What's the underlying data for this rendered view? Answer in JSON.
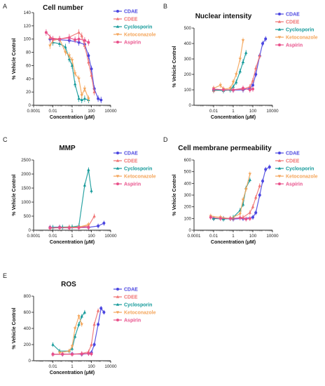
{
  "colors": {
    "CDAE": "#4a45e0",
    "CDEE": "#f07272",
    "Cyclosporin": "#159a9a",
    "Ketoconazole": "#f4a55a",
    "Aspirin": "#e8508a"
  },
  "chart_data": [
    {
      "panel": "A",
      "type": "scatter",
      "title": "Cell number",
      "xlabel": "Concentration (μM)",
      "ylabel": "% Vehicle Control",
      "xscale": "log",
      "xlim": [
        0.0001,
        10000
      ],
      "ylim": [
        0,
        140
      ],
      "xticks": [
        "0.0001",
        "0.01",
        "1",
        "100",
        "10000"
      ],
      "yticks": [
        0,
        20,
        40,
        60,
        80,
        100,
        120,
        140
      ],
      "legend": "top-right",
      "series": [
        {
          "name": "CDAE",
          "points": [
            [
              0.005,
              100
            ],
            [
              0.05,
              99
            ],
            [
              0.5,
              98
            ],
            [
              5,
              95
            ],
            [
              20,
              92
            ],
            [
              50,
              75
            ],
            [
              100,
              55
            ],
            [
              200,
              25
            ],
            [
              500,
              10
            ],
            [
              1000,
              8
            ]
          ]
        },
        {
          "name": "CDEE",
          "points": [
            [
              0.005,
              102
            ],
            [
              0.05,
              100
            ],
            [
              0.5,
              103
            ],
            [
              5,
              110
            ],
            [
              10,
              105
            ],
            [
              20,
              90
            ],
            [
              50,
              65
            ],
            [
              100,
              45
            ],
            [
              200,
              20
            ]
          ]
        },
        {
          "name": "Cyclosporin",
          "points": [
            [
              0.01,
              95
            ],
            [
              0.05,
              93
            ],
            [
              0.2,
              88
            ],
            [
              0.5,
              70
            ],
            [
              1,
              60
            ],
            [
              2,
              32
            ],
            [
              5,
              10
            ],
            [
              10,
              8
            ],
            [
              20,
              10
            ],
            [
              50,
              8
            ]
          ]
        },
        {
          "name": "Ketoconazole",
          "points": [
            [
              0.005,
              90
            ],
            [
              0.01,
              98
            ],
            [
              0.05,
              100
            ],
            [
              0.2,
              80
            ],
            [
              0.5,
              75
            ],
            [
              1,
              68
            ],
            [
              2,
              48
            ],
            [
              5,
              40
            ],
            [
              10,
              15
            ],
            [
              20,
              25
            ],
            [
              50,
              10
            ]
          ]
        },
        {
          "name": "Aspirin",
          "points": [
            [
              0.002,
              110
            ],
            [
              0.01,
              100
            ],
            [
              0.05,
              100
            ],
            [
              0.5,
              102
            ],
            [
              2,
              99
            ],
            [
              5,
              100
            ],
            [
              20,
              98
            ],
            [
              50,
              95
            ]
          ]
        }
      ]
    },
    {
      "panel": "B",
      "type": "scatter",
      "title": "Nuclear intensity",
      "xlabel": "Concentration (μM)",
      "ylabel": "% Vehicle Control",
      "xscale": "log",
      "xlim": [
        0.0001,
        10000
      ],
      "ylim": [
        0,
        500
      ],
      "xticks": [
        "0.01",
        "1",
        "100",
        "10000"
      ],
      "yticks": [
        0,
        100,
        200,
        300,
        400,
        500
      ],
      "legend": "top-right",
      "series": [
        {
          "name": "CDAE",
          "points": [
            [
              0.01,
              100
            ],
            [
              0.1,
              100
            ],
            [
              1,
              98
            ],
            [
              10,
              100
            ],
            [
              50,
              110
            ],
            [
              100,
              130
            ],
            [
              200,
              200
            ],
            [
              500,
              320
            ],
            [
              1000,
              400
            ],
            [
              2000,
              430
            ]
          ]
        },
        {
          "name": "CDEE",
          "points": [
            [
              0.01,
              95
            ],
            [
              0.1,
              100
            ],
            [
              1,
              100
            ],
            [
              10,
              105
            ],
            [
              50,
              120
            ],
            [
              100,
              160
            ],
            [
              200,
              240
            ],
            [
              500,
              320
            ]
          ]
        },
        {
          "name": "Cyclosporin",
          "points": [
            [
              0.01,
              100
            ],
            [
              0.1,
              95
            ],
            [
              0.5,
              100
            ],
            [
              1,
              120
            ],
            [
              2,
              150
            ],
            [
              5,
              220
            ],
            [
              10,
              280
            ],
            [
              20,
              340
            ]
          ]
        },
        {
          "name": "Ketoconazole",
          "points": [
            [
              0.01,
              110
            ],
            [
              0.05,
              130
            ],
            [
              0.1,
              105
            ],
            [
              0.5,
              110
            ],
            [
              1,
              150
            ],
            [
              2,
              200
            ],
            [
              5,
              300
            ],
            [
              10,
              420
            ]
          ]
        },
        {
          "name": "Aspirin",
          "points": [
            [
              0.01,
              105
            ],
            [
              0.1,
              100
            ],
            [
              1,
              100
            ],
            [
              10,
              110
            ],
            [
              50,
              100
            ],
            [
              100,
              105
            ]
          ]
        }
      ]
    },
    {
      "panel": "C",
      "type": "scatter",
      "title": "MMP",
      "xlabel": "Concentration (μM)",
      "ylabel": "% Vehicle Control",
      "xscale": "log",
      "xlim": [
        0.0001,
        10000
      ],
      "ylim": [
        0,
        2500
      ],
      "xticks": [
        "0.0001",
        "0.01",
        "1",
        "100",
        "10000"
      ],
      "yticks": [
        0,
        500,
        1000,
        1500,
        2000,
        2500
      ],
      "legend": "top-right",
      "series": [
        {
          "name": "CDAE",
          "points": [
            [
              0.005,
              100
            ],
            [
              0.05,
              110
            ],
            [
              0.5,
              100
            ],
            [
              5,
              120
            ],
            [
              50,
              100
            ],
            [
              500,
              150
            ],
            [
              2000,
              250
            ]
          ]
        },
        {
          "name": "CDEE",
          "points": [
            [
              0.005,
              90
            ],
            [
              0.05,
              100
            ],
            [
              0.5,
              110
            ],
            [
              5,
              120
            ],
            [
              50,
              150
            ],
            [
              200,
              500
            ]
          ]
        },
        {
          "name": "Cyclosporin",
          "points": [
            [
              0.01,
              100
            ],
            [
              0.1,
              110
            ],
            [
              1,
              120
            ],
            [
              5,
              150
            ],
            [
              20,
              1600
            ],
            [
              50,
              2150
            ],
            [
              100,
              1400
            ]
          ]
        },
        {
          "name": "Ketoconazole",
          "points": [
            [
              0.005,
              80
            ],
            [
              0.05,
              90
            ],
            [
              0.5,
              100
            ],
            [
              5,
              110
            ],
            [
              50,
              200
            ]
          ]
        },
        {
          "name": "Aspirin",
          "points": [
            [
              0.005,
              80
            ],
            [
              0.05,
              90
            ],
            [
              0.5,
              85
            ],
            [
              5,
              90
            ],
            [
              50,
              100
            ]
          ]
        }
      ]
    },
    {
      "panel": "D",
      "type": "scatter",
      "title": "Cell membrane permeability",
      "xlabel": "Concentration (μM)",
      "ylabel": "% Vehicle Control",
      "xscale": "log",
      "xlim": [
        0.0001,
        10000
      ],
      "ylim": [
        0,
        600
      ],
      "xticks": [
        "0.0001",
        "0.01",
        "1",
        "100",
        "10000"
      ],
      "yticks": [
        0,
        100,
        200,
        300,
        400,
        500,
        600
      ],
      "legend": "top-right",
      "series": [
        {
          "name": "CDAE",
          "points": [
            [
              0.01,
              100
            ],
            [
              0.1,
              100
            ],
            [
              1,
              95
            ],
            [
              10,
              100
            ],
            [
              100,
              110
            ],
            [
              200,
              150
            ],
            [
              500,
              300
            ],
            [
              1000,
              420
            ],
            [
              2000,
              520
            ],
            [
              5000,
              540
            ]
          ]
        },
        {
          "name": "CDEE",
          "points": [
            [
              0.01,
              100
            ],
            [
              0.1,
              100
            ],
            [
              1,
              100
            ],
            [
              10,
              110
            ],
            [
              50,
              150
            ],
            [
              100,
              200
            ],
            [
              200,
              280
            ],
            [
              500,
              380
            ]
          ]
        },
        {
          "name": "Cyclosporin",
          "points": [
            [
              0.01,
              100
            ],
            [
              0.1,
              95
            ],
            [
              0.5,
              100
            ],
            [
              1,
              110
            ],
            [
              5,
              170
            ],
            [
              10,
              220
            ],
            [
              20,
              360
            ],
            [
              50,
              430
            ]
          ]
        },
        {
          "name": "Ketoconazole",
          "points": [
            [
              0.005,
              120
            ],
            [
              0.05,
              110
            ],
            [
              0.5,
              100
            ],
            [
              5,
              140
            ],
            [
              10,
              260
            ],
            [
              20,
              350
            ],
            [
              50,
              480
            ]
          ]
        },
        {
          "name": "Aspirin",
          "points": [
            [
              0.005,
              110
            ],
            [
              0.05,
              100
            ],
            [
              0.5,
              100
            ],
            [
              5,
              105
            ],
            [
              20,
              95
            ],
            [
              50,
              100
            ]
          ]
        }
      ]
    },
    {
      "panel": "E",
      "type": "scatter",
      "title": "ROS",
      "xlabel": "Concentration (μM)",
      "ylabel": "% Vehicle Control",
      "xscale": "log",
      "xlim": [
        0.0001,
        10000
      ],
      "ylim": [
        0,
        800
      ],
      "xticks": [
        "0.01",
        "1",
        "100",
        "10000"
      ],
      "yticks": [
        0,
        200,
        400,
        600,
        800
      ],
      "legend": "top-right",
      "series": [
        {
          "name": "CDAE",
          "points": [
            [
              0.01,
              80
            ],
            [
              0.1,
              80
            ],
            [
              1,
              85
            ],
            [
              10,
              80
            ],
            [
              50,
              90
            ],
            [
              100,
              100
            ],
            [
              200,
              200
            ],
            [
              500,
              450
            ],
            [
              1000,
              650
            ],
            [
              2000,
              600
            ]
          ]
        },
        {
          "name": "CDEE",
          "points": [
            [
              0.01,
              80
            ],
            [
              0.1,
              85
            ],
            [
              1,
              80
            ],
            [
              10,
              90
            ],
            [
              50,
              110
            ],
            [
              100,
              200
            ],
            [
              200,
              450
            ],
            [
              500,
              620
            ]
          ]
        },
        {
          "name": "Cyclosporin",
          "points": [
            [
              0.01,
              200
            ],
            [
              0.05,
              120
            ],
            [
              0.5,
              120
            ],
            [
              1,
              150
            ],
            [
              2,
              300
            ],
            [
              5,
              450
            ],
            [
              10,
              550
            ],
            [
              20,
              600
            ]
          ]
        },
        {
          "name": "Ketoconazole",
          "points": [
            [
              0.05,
              100
            ],
            [
              0.5,
              120
            ],
            [
              1,
              180
            ],
            [
              2,
              400
            ],
            [
              5,
              550
            ],
            [
              10,
              450
            ]
          ]
        },
        {
          "name": "Aspirin",
          "points": [
            [
              0.01,
              80
            ],
            [
              0.1,
              80
            ],
            [
              1,
              80
            ],
            [
              10,
              85
            ],
            [
              50,
              90
            ],
            [
              100,
              85
            ]
          ]
        }
      ]
    }
  ]
}
